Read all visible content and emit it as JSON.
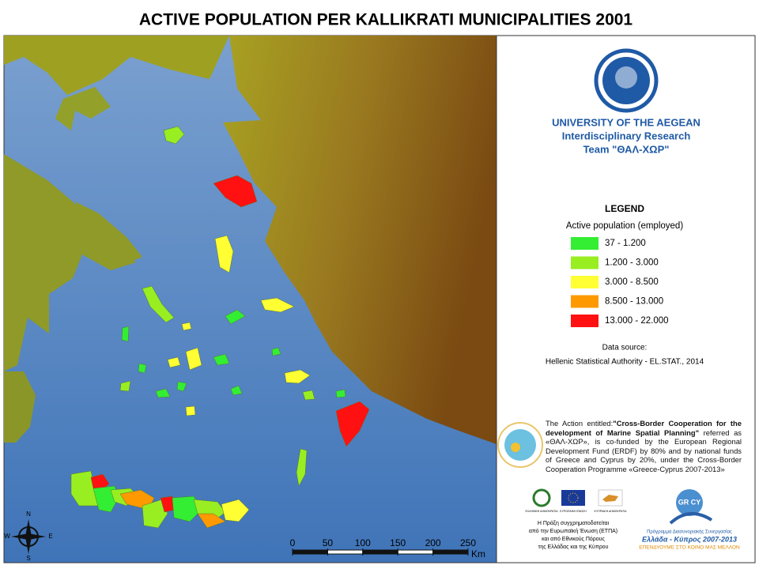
{
  "title": "ACTIVE POPULATION PER KALLIKRATI MUNICIPALITIES 2001",
  "institution": {
    "name": "UNIVERSITY OF THE AEGEAN",
    "lines": [
      "Interdisciplinary Research",
      "Team \"ΘΑΛ-ΧΩΡ\""
    ]
  },
  "legend": {
    "title": "LEGEND",
    "subtitle": "Active population (employed)",
    "classes": [
      {
        "label": "37 - 1.200",
        "color": "#33ee33"
      },
      {
        "label": "1.200 - 3.000",
        "color": "#99ee22"
      },
      {
        "label": "3.000 - 8.500",
        "color": "#ffff33"
      },
      {
        "label": "8.500 - 13.000",
        "color": "#ff9900"
      },
      {
        "label": "13.000 - 22.000",
        "color": "#ff1111"
      }
    ]
  },
  "data_source": {
    "label": "Data source:",
    "text": "Hellenic Statistical Authority - EL.STAT., 2014"
  },
  "action": {
    "intro": "The Action entitled:",
    "name": "\"Cross-Border Cooperation for the development of Marine Spatial Planning\"",
    "rest": "referred as «ΘΑΛ-ΧΩΡ», is co-funded by the European Regional Development Fund (ERDF) by 80% and by national funds of Greece and Cyprus by 20%, under the Cross-Border Cooperation Programme «Greece-Cyprus 2007-2013»"
  },
  "funding": {
    "logos": [
      "ΕΛΛΗΝΙΚΗ ΔΗΜΟΚΡΑΤΙΑ",
      "ΕΥΡΩΠΑΪΚΗ ΕΝΩΣΗ",
      "ΚΥΠΡΙΑΚΗ ΔΗΜΟΚΡΑΤΙΑ"
    ],
    "lines": [
      "Η Πράξη συγχρηματοδοτείται",
      "από την Ευρωπαϊκή Ένωση (ΕΤΠΑ)",
      "και από Εθνικούς Πόρους",
      "της Ελλάδας και της Κύπρου"
    ],
    "programme_logo": "GR CY",
    "programme_caption": "Πρόγραμμα Διασυνοριακής Συνεργασίας",
    "programme_name": "Ελλάδα - Κύπρος 2007-2013",
    "programme_motto": "ΕΠΕΝΔΥΟΥΜΕ ΣΤΟ ΚΟΙΝΟ ΜΑΣ ΜΕΛΛΟΝ"
  },
  "scale_bar": {
    "ticks": [
      0,
      50,
      100,
      150,
      200,
      250
    ],
    "unit": "Km"
  },
  "compass": {
    "n": "N",
    "e": "E",
    "s": "S",
    "w": "W"
  }
}
